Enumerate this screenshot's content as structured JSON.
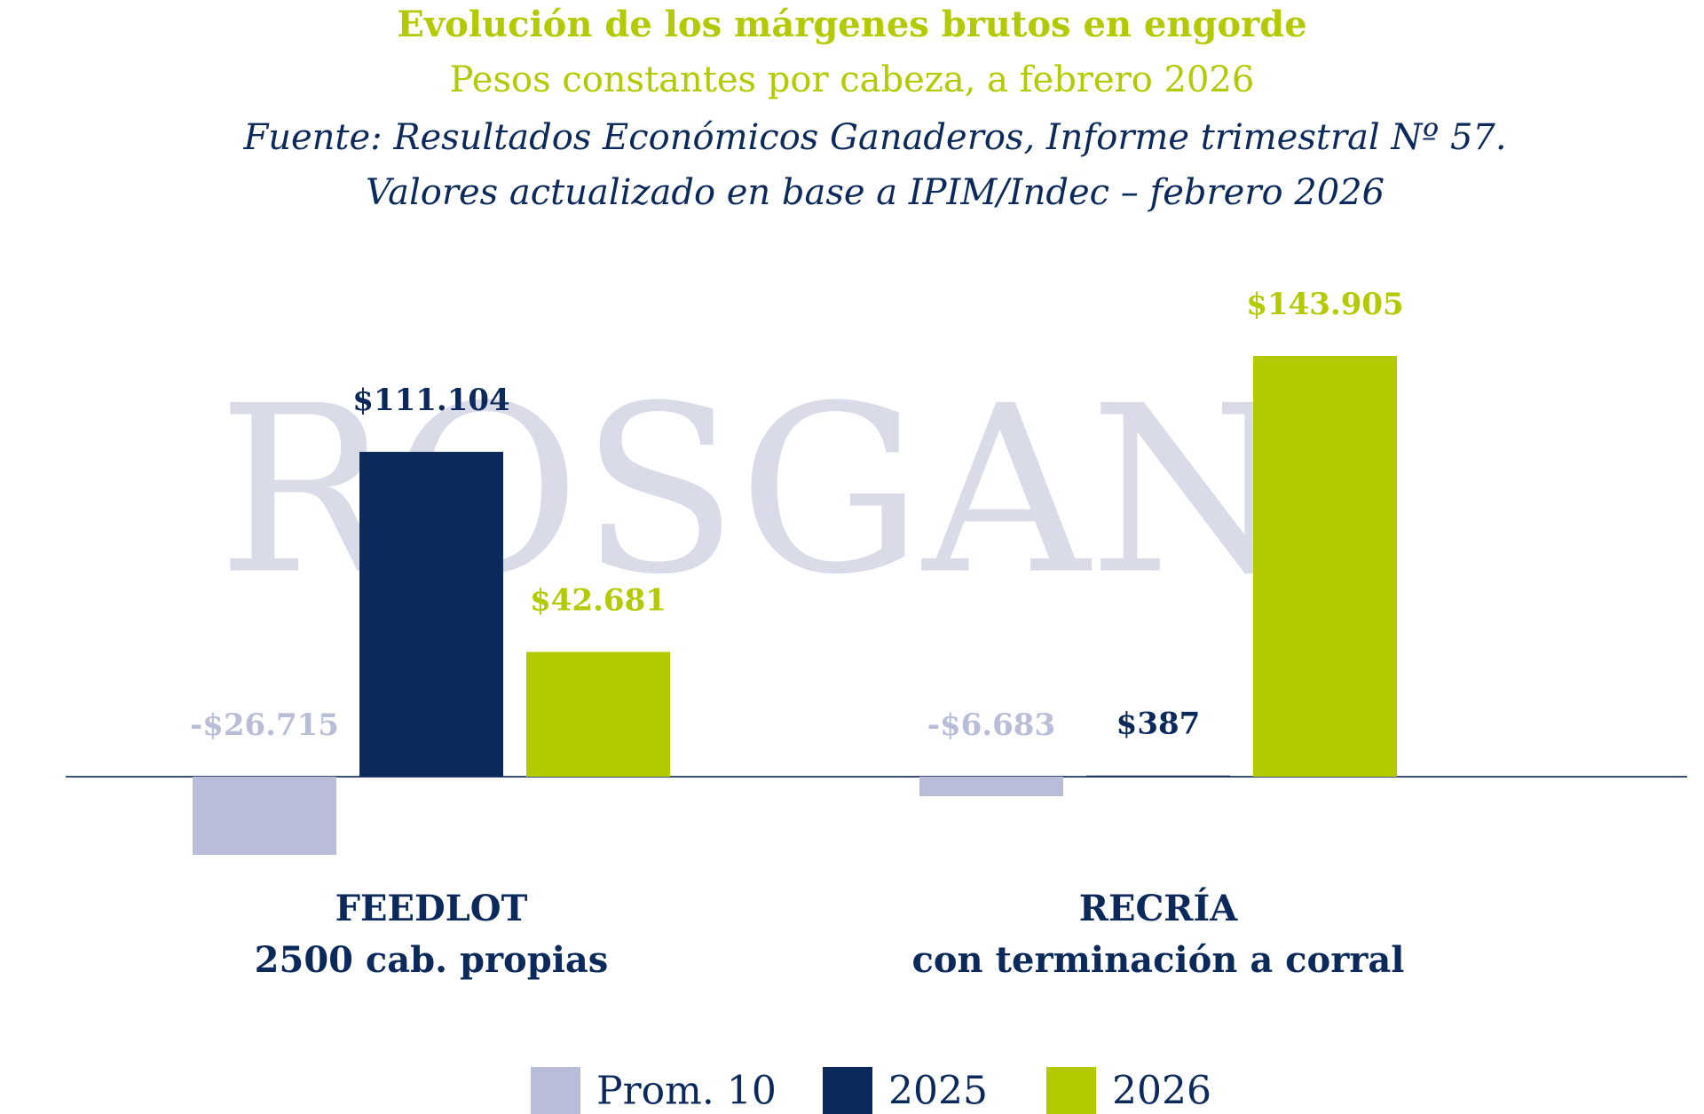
{
  "chart_data": {
    "type": "bar",
    "title": "Evolución de los márgenes brutos en engorde",
    "subtitle": "Pesos constantes por cabeza, a febrero 2026",
    "source": [
      "Fuente: Resultados Económicos Ganaderos, Informe trimestral Nº 57.",
      "Valores actualizado en base a IPIM/Indec – febrero 2026"
    ],
    "watermark": "ROSGAN",
    "categories": [
      [
        "FEEDLOT",
        "2500 cab. propias"
      ],
      [
        "RECRÍA",
        "con terminación a corral"
      ]
    ],
    "series": [
      {
        "name": "Prom. 10",
        "color": "#b9bdd7",
        "values": [
          -26715,
          -6683
        ],
        "value_labels": [
          "-$26.715",
          "-$6.683"
        ]
      },
      {
        "name": "2025",
        "color": "#0b2a5b",
        "values": [
          111104,
          387
        ],
        "value_labels": [
          "$111.104",
          "$387"
        ]
      },
      {
        "name": "2026",
        "color": "#b3c900",
        "values": [
          42681,
          143905
        ],
        "value_labels": [
          "$42.681",
          "$143.905"
        ]
      }
    ]
  }
}
